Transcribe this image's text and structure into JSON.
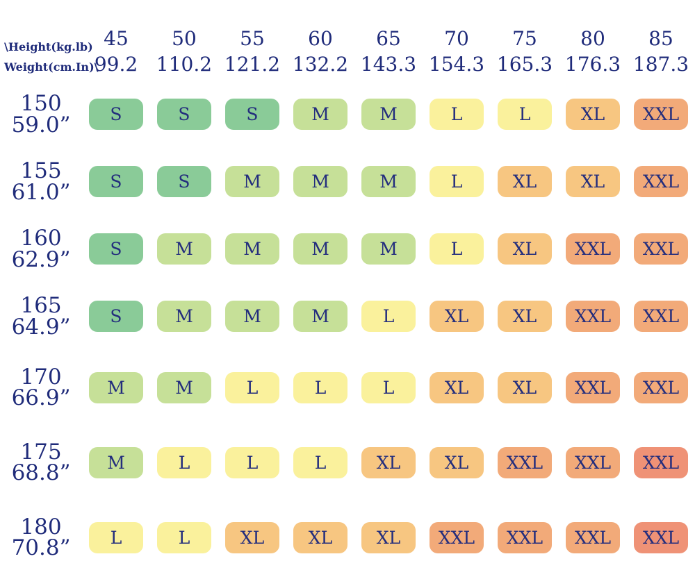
{
  "corner": {
    "line1": "\\Height(kg.lb)",
    "line2": "Weight(cm.In)\\"
  },
  "columns": [
    {
      "kg": "45",
      "lb": "99.2"
    },
    {
      "kg": "50",
      "lb": "110.2"
    },
    {
      "kg": "55",
      "lb": "121.2"
    },
    {
      "kg": "60",
      "lb": "132.2"
    },
    {
      "kg": "65",
      "lb": "143.3"
    },
    {
      "kg": "70",
      "lb": "154.3"
    },
    {
      "kg": "75",
      "lb": "165.3"
    },
    {
      "kg": "80",
      "lb": "176.3"
    },
    {
      "kg": "85",
      "lb": "187.3"
    }
  ],
  "rows": [
    {
      "cm": "150",
      "inch": "59.0”",
      "cells": [
        "S",
        "S",
        "S",
        "M",
        "M",
        "L",
        "L",
        "XL",
        "XXL"
      ]
    },
    {
      "cm": "155",
      "inch": "61.0”",
      "cells": [
        "S",
        "S",
        "M",
        "M",
        "M",
        "L",
        "XL",
        "XL",
        "XXL"
      ]
    },
    {
      "cm": "160",
      "inch": "62.9”",
      "cells": [
        "S",
        "M",
        "M",
        "M",
        "M",
        "L",
        "XL",
        "XXL",
        "XXL"
      ]
    },
    {
      "cm": "165",
      "inch": "64.9”",
      "cells": [
        "S",
        "M",
        "M",
        "M",
        "L",
        "XL",
        "XL",
        "XXL",
        "XXL"
      ]
    },
    {
      "cm": "170",
      "inch": "66.9”",
      "cells": [
        "M",
        "M",
        "L",
        "L",
        "L",
        "XL",
        "XL",
        "XXL",
        "XXL"
      ]
    },
    {
      "cm": "175",
      "inch": "68.8”",
      "cells": [
        "M",
        "L",
        "L",
        "L",
        "XL",
        "XL",
        "XXL",
        "XXL",
        "XXL_DEEP"
      ]
    },
    {
      "cm": "180",
      "inch": "70.8”",
      "cells": [
        "L",
        "L",
        "XL",
        "XL",
        "XL",
        "XXL",
        "XXL",
        "XXL",
        "XXL_DEEP"
      ]
    }
  ],
  "palette": {
    "S": "#8acb98",
    "M": "#c6e098",
    "L": "#faf19c",
    "XL": "#f7c681",
    "XXL": "#f2aa79",
    "XXL_DEEP": "#ef9276"
  },
  "text_color": "#1f2b7a",
  "chart_data": {
    "type": "heatmap",
    "corner_labels": [
      "\\Height(kg.lb)",
      "Weight(cm.In)\\"
    ],
    "columns_kg": [
      45,
      50,
      55,
      60,
      65,
      70,
      75,
      80,
      85
    ],
    "columns_lb": [
      99.2,
      110.2,
      121.2,
      132.2,
      143.3,
      154.3,
      165.3,
      176.3,
      187.3
    ],
    "rows_cm": [
      150,
      155,
      160,
      165,
      170,
      175,
      180
    ],
    "rows_in": [
      59.0,
      61.0,
      62.9,
      64.9,
      66.9,
      68.8,
      70.8
    ],
    "values": [
      [
        "S",
        "S",
        "S",
        "M",
        "M",
        "L",
        "L",
        "XL",
        "XXL"
      ],
      [
        "S",
        "S",
        "M",
        "M",
        "M",
        "L",
        "XL",
        "XL",
        "XXL"
      ],
      [
        "S",
        "M",
        "M",
        "M",
        "M",
        "L",
        "XL",
        "XXL",
        "XXL"
      ],
      [
        "S",
        "M",
        "M",
        "M",
        "L",
        "XL",
        "XL",
        "XXL",
        "XXL"
      ],
      [
        "M",
        "M",
        "L",
        "L",
        "L",
        "XL",
        "XL",
        "XXL",
        "XXL"
      ],
      [
        "M",
        "L",
        "L",
        "L",
        "XL",
        "XL",
        "XXL",
        "XXL",
        "XXL"
      ],
      [
        "L",
        "L",
        "XL",
        "XL",
        "XL",
        "XXL",
        "XXL",
        "XXL",
        "XXL"
      ]
    ],
    "legend": {
      "S": "#8acb98",
      "M": "#c6e098",
      "L": "#faf19c",
      "XL": "#f7c681",
      "XXL": "#f2aa79"
    },
    "grid": false,
    "title": ""
  }
}
